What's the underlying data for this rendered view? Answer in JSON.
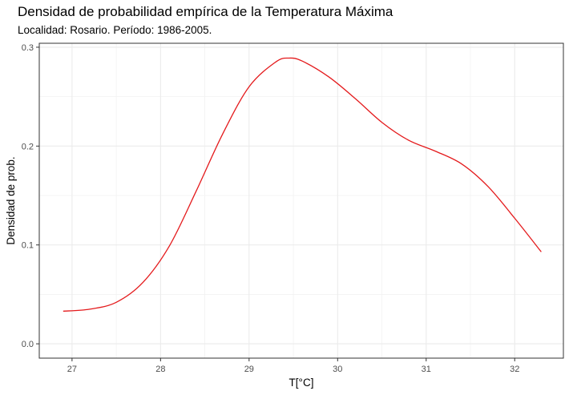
{
  "chart_data": {
    "type": "line",
    "title": "Densidad de probabilidad empírica de la Temperatura Máxima",
    "subtitle": "Localidad: Rosario. Período: 1986-2005.",
    "xlabel": "T[°C]",
    "ylabel": "Densidad de prob.",
    "xlim": [
      26.63,
      32.55
    ],
    "ylim": [
      -0.0145,
      0.304
    ],
    "x_ticks": [
      27,
      28,
      29,
      30,
      31,
      32
    ],
    "y_ticks": [
      0.0,
      0.1,
      0.2,
      0.3
    ],
    "y_tick_labels": [
      "0.0",
      "0.1",
      "0.2",
      "0.3"
    ],
    "grid": true,
    "line_color": "#e41a1c",
    "series": [
      {
        "x": [
          26.9,
          27.2,
          27.5,
          27.8,
          28.1,
          28.4,
          28.7,
          29.0,
          29.3,
          29.45,
          29.6,
          29.9,
          30.2,
          30.5,
          30.8,
          31.1,
          31.4,
          31.7,
          32.0,
          32.3
        ],
        "y": [
          0.033,
          0.035,
          0.042,
          0.062,
          0.099,
          0.154,
          0.212,
          0.26,
          0.285,
          0.289,
          0.286,
          0.27,
          0.248,
          0.224,
          0.206,
          0.195,
          0.182,
          0.159,
          0.127,
          0.093
        ]
      }
    ]
  }
}
